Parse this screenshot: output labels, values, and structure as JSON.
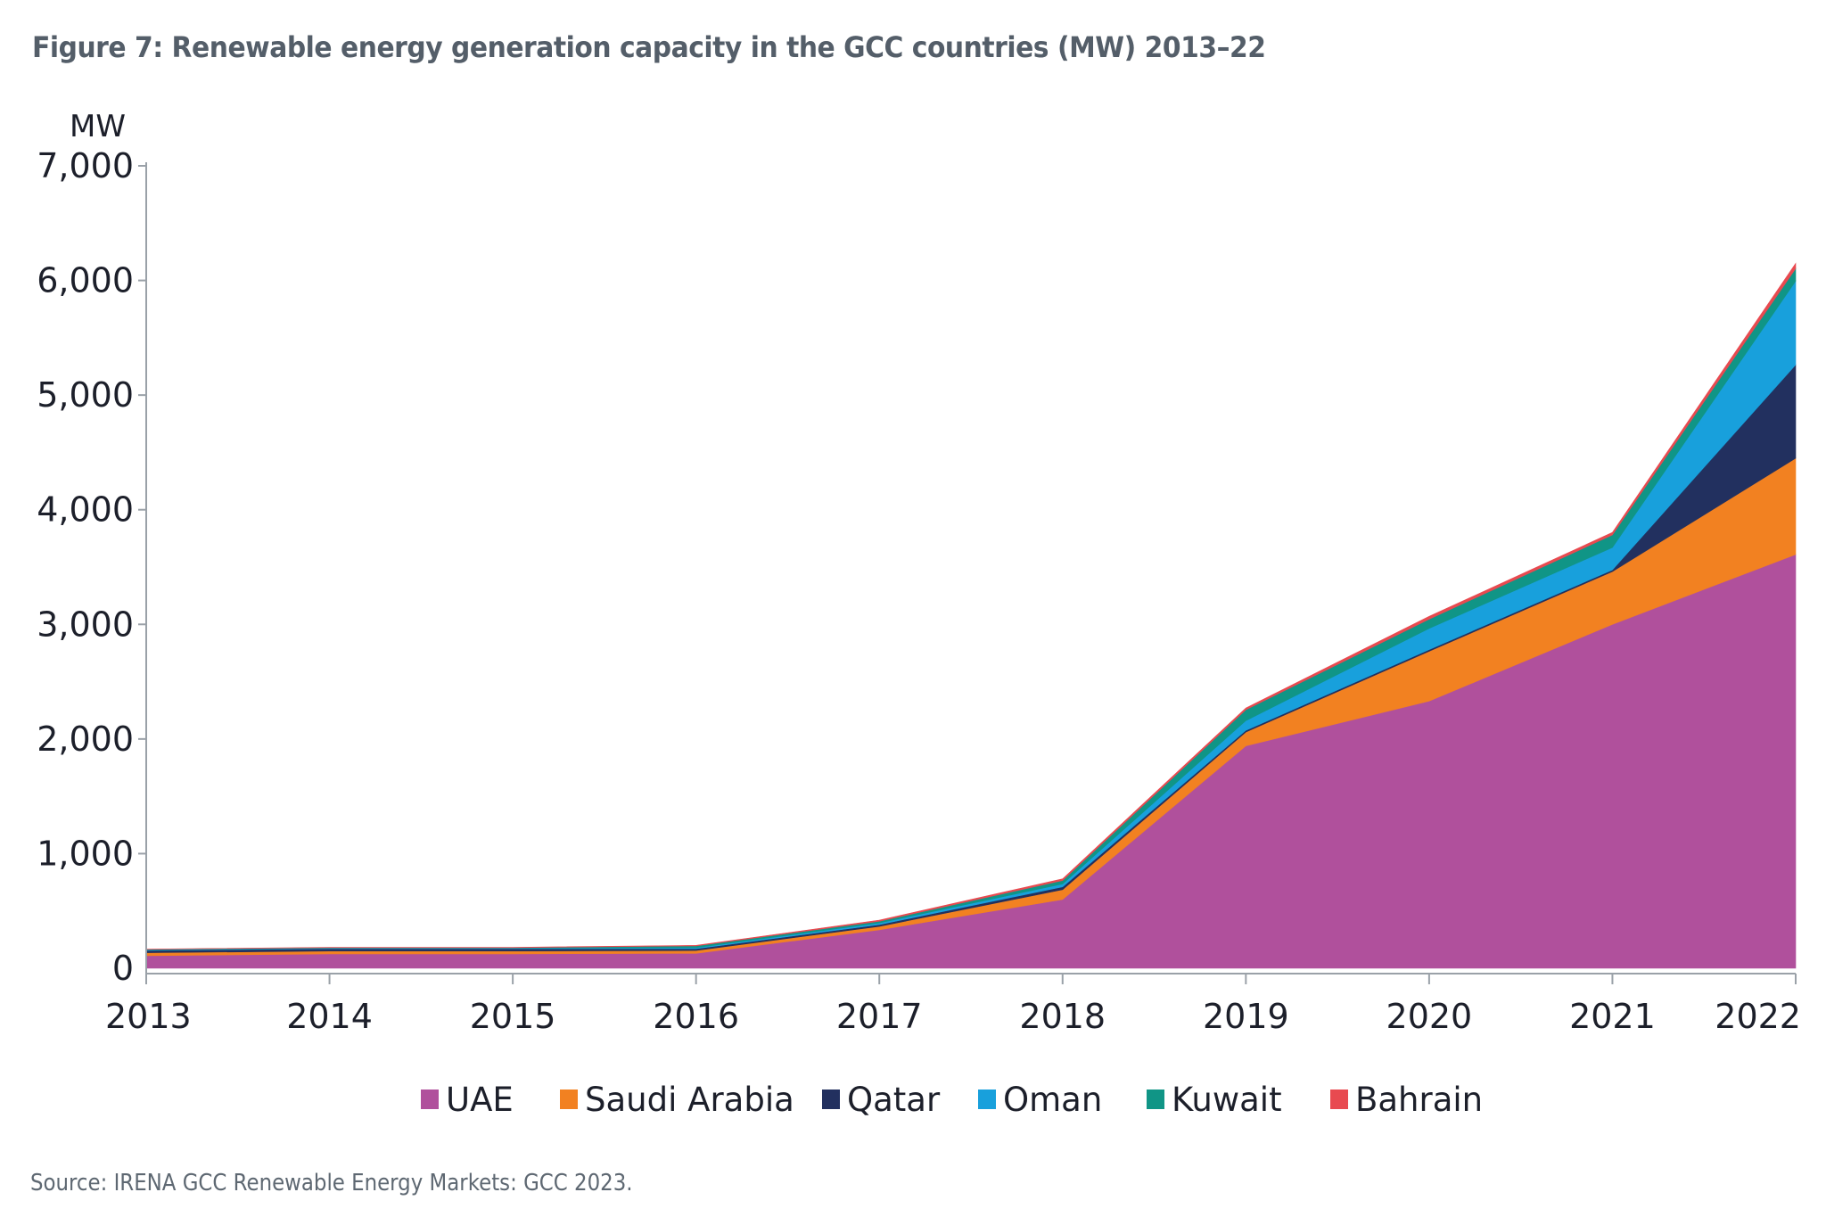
{
  "title": "Figure 7: Renewable energy generation capacity in the GCC countries (MW) 2013–22",
  "source": "Source: IRENA GCC Renewable Energy Markets: GCC 2023.",
  "chart_data": {
    "type": "area",
    "stacked": true,
    "title": "Figure 7: Renewable energy generation capacity in the GCC countries (MW) 2013–22",
    "xlabel": "",
    "ylabel": "MW",
    "ylim": [
      0,
      7000
    ],
    "yticks": [
      0,
      1000,
      2000,
      3000,
      4000,
      5000,
      6000,
      7000
    ],
    "ytick_labels": [
      "0",
      "1,000",
      "2,000",
      "3,000",
      "4,000",
      "5,000",
      "6,000",
      "7,000"
    ],
    "grid": false,
    "legend_position": "bottom",
    "x": [
      "2013",
      "2014",
      "2015",
      "2016",
      "2017",
      "2018",
      "2019",
      "2020",
      "2021",
      "2022"
    ],
    "series": [
      {
        "name": "UAE",
        "color": "#B0509C",
        "values": [
          110,
          125,
          125,
          130,
          335,
          600,
          1940,
          2330,
          3000,
          3610
        ]
      },
      {
        "name": "Saudi Arabia",
        "color": "#F28121",
        "values": [
          25,
          25,
          25,
          25,
          30,
          85,
          120,
          435,
          460,
          840
        ]
      },
      {
        "name": "Qatar",
        "color": "#22305F",
        "values": [
          20,
          20,
          20,
          15,
          15,
          25,
          15,
          15,
          15,
          815
        ]
      },
      {
        "name": "Oman",
        "color": "#18A0DC",
        "values": [
          5,
          5,
          5,
          10,
          15,
          25,
          85,
          185,
          195,
          730
        ]
      },
      {
        "name": "Kuwait",
        "color": "#109586",
        "values": [
          5,
          5,
          5,
          15,
          15,
          30,
          95,
          80,
          110,
          110
        ]
      },
      {
        "name": "Bahrain",
        "color": "#E84A50",
        "values": [
          2,
          2,
          3,
          5,
          10,
          15,
          15,
          25,
          22,
          45
        ]
      }
    ]
  }
}
